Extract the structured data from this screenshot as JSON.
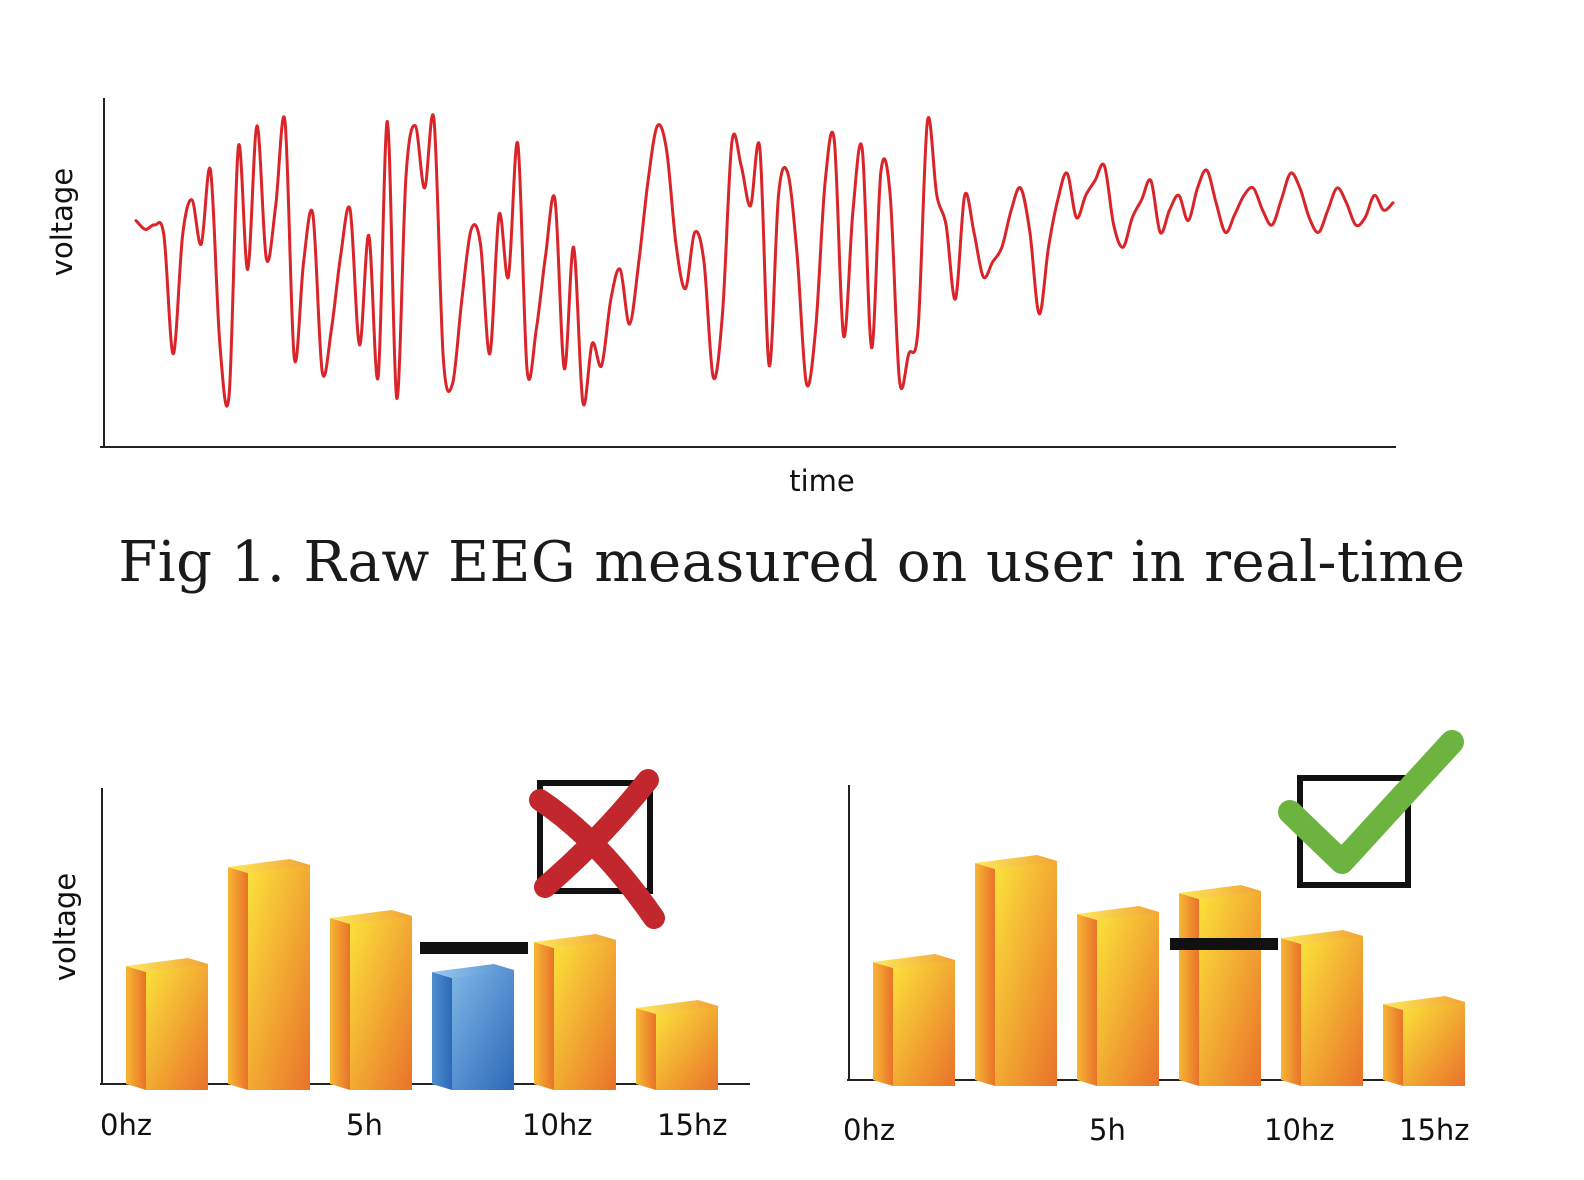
{
  "caption": "Fig 1. Raw EEG measured on user in real-time",
  "colors": {
    "eeg_line": "#d9252a",
    "bar_orange_light": "#fbe33a",
    "bar_orange_dark": "#e9722a",
    "bar_blue_light": "#7fb7e6",
    "bar_blue_dark": "#2c68b8",
    "cross": "#c1272d",
    "check": "#6cb33f",
    "axis": "#222222"
  },
  "chart_data": [
    {
      "id": "eeg",
      "type": "line",
      "title": "",
      "xlabel": "time",
      "ylabel": "voltage",
      "ylim": [
        -1,
        1
      ],
      "x": [
        0,
        1,
        2,
        3,
        4,
        5,
        6,
        7,
        8,
        9,
        10,
        11,
        12,
        13,
        14,
        15,
        16,
        17,
        18,
        19,
        20,
        21,
        22,
        23,
        24,
        25,
        26,
        27,
        28,
        29,
        30,
        31,
        32,
        33,
        34,
        35,
        36,
        37,
        38,
        39,
        40,
        41,
        42,
        43,
        44,
        45,
        46,
        47,
        48,
        49,
        50,
        51,
        52,
        53,
        54,
        55,
        56,
        57,
        58,
        59,
        60,
        61,
        62,
        63,
        64,
        65,
        66,
        67,
        68,
        69,
        70,
        71,
        72,
        73,
        74,
        75,
        76,
        77,
        78,
        79,
        80,
        81,
        82,
        83,
        84,
        85,
        86,
        87,
        88,
        89,
        90,
        91,
        92,
        93,
        94,
        95,
        96,
        97,
        98,
        99,
        100,
        101,
        102,
        103,
        104,
        105,
        106,
        107,
        108,
        109,
        110,
        111,
        112,
        113,
        114,
        115,
        116,
        117,
        118,
        119,
        120,
        121,
        122,
        123,
        124,
        125,
        126,
        127,
        128,
        129,
        130,
        131,
        132,
        133,
        134,
        135
      ],
      "series": [
        {
          "values": [
            0.28,
            0.22,
            0.25,
            0.18,
            -0.62,
            0.18,
            0.42,
            0.12,
            0.62,
            -0.55,
            -0.9,
            0.78,
            -0.05,
            0.92,
            0.02,
            0.38,
            0.95,
            -0.65,
            0.0,
            0.32,
            -0.74,
            -0.45,
            0.05,
            0.35,
            -0.56,
            0.18,
            -0.78,
            0.95,
            -0.92,
            0.58,
            0.92,
            0.5,
            0.96,
            -0.65,
            -0.82,
            -0.25,
            0.22,
            0.12,
            -0.62,
            0.32,
            -0.1,
            0.8,
            -0.73,
            -0.45,
            0.05,
            0.42,
            -0.72,
            0.1,
            -0.95,
            -0.55,
            -0.7,
            -0.25,
            -0.05,
            -0.42,
            0.0,
            0.55,
            0.92,
            0.75,
            0.12,
            -0.18,
            0.2,
            0.0,
            -0.78,
            -0.34,
            0.81,
            0.65,
            0.38,
            0.77,
            -0.7,
            0.45,
            0.6,
            0.05,
            -0.82,
            -0.45,
            0.53,
            0.82,
            -0.5,
            0.35,
            0.76,
            -0.58,
            0.61,
            0.45,
            -0.8,
            -0.62,
            -0.45,
            0.95,
            0.45,
            0.25,
            -0.25,
            0.45,
            0.2,
            -0.1,
            0.0,
            0.1,
            0.35,
            0.5,
            0.2,
            -0.35,
            0.1,
            0.42,
            0.6,
            0.3,
            0.45,
            0.55,
            0.65,
            0.25,
            0.1,
            0.3,
            0.42,
            0.55,
            0.2,
            0.35,
            0.45,
            0.28,
            0.5,
            0.62,
            0.4,
            0.2,
            0.32,
            0.45,
            0.5,
            0.35,
            0.25,
            0.42,
            0.6,
            0.5,
            0.3,
            0.2,
            0.35,
            0.5,
            0.4,
            0.25,
            0.3,
            0.45,
            0.35,
            0.4
          ]
        }
      ]
    },
    {
      "id": "spectrum-fail",
      "type": "bar",
      "title": "",
      "xlabel": "",
      "ylabel": "voltage",
      "ylim": [
        0,
        100
      ],
      "tick_labels": [
        "0hz",
        "5h",
        "10hz",
        "15hz"
      ],
      "values": [
        42,
        75,
        58,
        40,
        50,
        28
      ],
      "highlight_index": 3,
      "highlight_color": "blue",
      "threshold": 47,
      "verdict": "cross"
    },
    {
      "id": "spectrum-pass",
      "type": "bar",
      "title": "",
      "xlabel": "",
      "ylabel": "",
      "ylim": [
        0,
        100
      ],
      "tick_labels": [
        "0hz",
        "5h",
        "10hz",
        "15hz"
      ],
      "values": [
        42,
        75,
        58,
        65,
        50,
        28
      ],
      "highlight_index": null,
      "highlight_color": null,
      "threshold": 47,
      "verdict": "check"
    }
  ]
}
